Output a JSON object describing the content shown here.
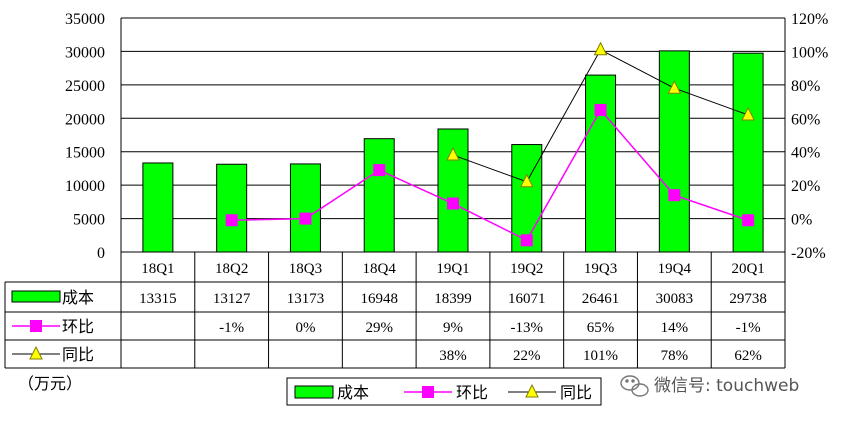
{
  "chart_data": {
    "type": "bar",
    "categories": [
      "18Q1",
      "18Q2",
      "18Q3",
      "18Q4",
      "19Q1",
      "19Q2",
      "19Q3",
      "19Q4",
      "20Q1"
    ],
    "unit": "（万元）",
    "ylim": [
      0,
      35000
    ],
    "yticks": [
      "35000",
      "30000",
      "25000",
      "20000",
      "15000",
      "10000",
      "5000",
      "0"
    ],
    "y2lim": [
      -20,
      120
    ],
    "y2ticks": [
      "120%",
      "100%",
      "80%",
      "60%",
      "40%",
      "20%",
      "0%",
      "-20%"
    ],
    "grid": true,
    "legend_position": "bottom",
    "series": [
      {
        "name": "成本",
        "kind": "bar",
        "color": "#00ff00",
        "values": [
          13315,
          13127,
          13173,
          16948,
          18399,
          16071,
          26461,
          30083,
          29738
        ],
        "labels": [
          "13315",
          "13127",
          "13173",
          "16948",
          "18399",
          "16071",
          "26461",
          "30083",
          "29738"
        ]
      },
      {
        "name": "环比",
        "kind": "line",
        "color": "#ff00ff",
        "marker": "square",
        "axis": "secondary",
        "values": [
          null,
          -1,
          0,
          29,
          9,
          -13,
          65,
          14,
          -1
        ],
        "labels": [
          "",
          "-1%",
          "0%",
          "29%",
          "9%",
          "-13%",
          "65%",
          "14%",
          "-1%"
        ]
      },
      {
        "name": "同比",
        "kind": "line",
        "color": "#ffff00",
        "line_color": "#000000",
        "marker": "triangle",
        "axis": "secondary",
        "values": [
          null,
          null,
          null,
          null,
          38,
          22,
          101,
          78,
          62
        ],
        "labels": [
          "",
          "",
          "",
          "",
          "38%",
          "22%",
          "101%",
          "78%",
          "62%"
        ]
      }
    ]
  },
  "watermark": "微信号: touchweb"
}
